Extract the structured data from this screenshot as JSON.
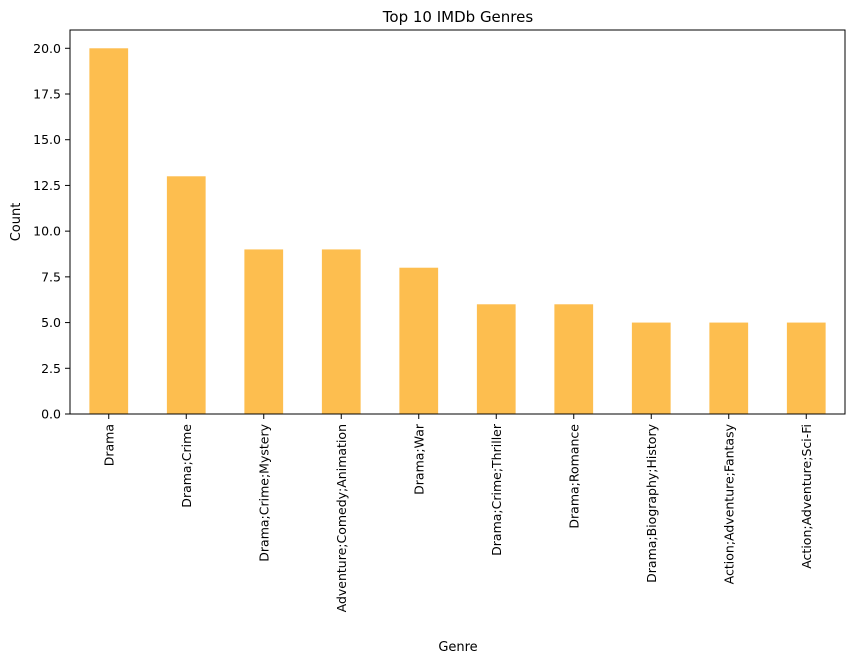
{
  "chart_data": {
    "type": "bar",
    "title": "Top 10 IMDb Genres",
    "xlabel": "Genre",
    "ylabel": "Count",
    "categories": [
      "Drama",
      "Drama;Crime",
      "Drama;Crime;Mystery",
      "Adventure;Comedy;Animation",
      "Drama;War",
      "Drama;Crime;Thriller",
      "Drama;Romance",
      "Drama;Biography;History",
      "Action;Adventure;Fantasy",
      "Action;Adventure;Sci-Fi"
    ],
    "values": [
      20,
      13,
      9,
      9,
      8,
      6,
      6,
      5,
      5,
      5
    ],
    "ylim": [
      0,
      21
    ],
    "yticks": [
      "0.0",
      "2.5",
      "5.0",
      "7.5",
      "10.0",
      "12.5",
      "15.0",
      "17.5",
      "20.0"
    ],
    "bar_color": "#FDBE4F",
    "grid": false,
    "legend": "none"
  }
}
